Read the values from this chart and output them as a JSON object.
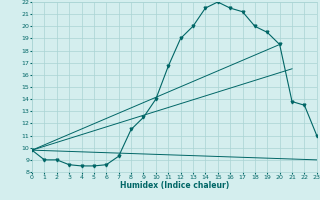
{
  "title": "",
  "xlabel": "Humidex (Indice chaleur)",
  "xlim": [
    0,
    23
  ],
  "ylim": [
    8,
    22
  ],
  "xticks": [
    0,
    1,
    2,
    3,
    4,
    5,
    6,
    7,
    8,
    9,
    10,
    11,
    12,
    13,
    14,
    15,
    16,
    17,
    18,
    19,
    20,
    21,
    22,
    23
  ],
  "yticks": [
    8,
    9,
    10,
    11,
    12,
    13,
    14,
    15,
    16,
    17,
    18,
    19,
    20,
    21,
    22
  ],
  "bg_color": "#d4eeee",
  "grid_color": "#aad4d4",
  "line_color": "#006666",
  "main_curve": {
    "x": [
      0,
      1,
      2,
      3,
      4,
      5,
      6,
      7,
      8,
      9,
      10,
      11,
      12,
      13,
      14,
      15,
      16,
      17,
      18,
      19,
      20,
      21,
      22,
      23
    ],
    "y": [
      9.8,
      9.0,
      9.0,
      8.6,
      8.5,
      8.5,
      8.6,
      9.3,
      11.5,
      12.5,
      14.0,
      16.7,
      19.0,
      20.0,
      21.5,
      22.0,
      21.5,
      21.2,
      20.0,
      19.5,
      18.5,
      13.8,
      13.5,
      11.0
    ]
  },
  "straight_line1": {
    "x": [
      0,
      23
    ],
    "y": [
      9.8,
      9.0
    ]
  },
  "straight_line2": {
    "x": [
      0,
      20
    ],
    "y": [
      9.8,
      18.5
    ]
  },
  "straight_line3": {
    "x": [
      0,
      21
    ],
    "y": [
      9.8,
      16.5
    ]
  }
}
